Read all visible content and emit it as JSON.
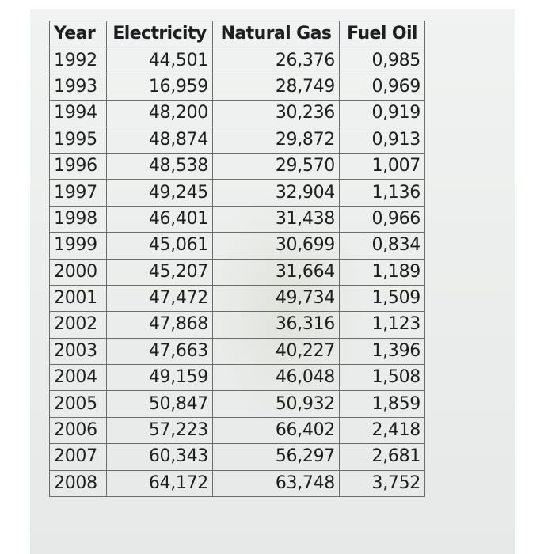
{
  "table": {
    "headers": [
      "Year",
      "Electricity",
      "Natural Gas",
      "Fuel Oil"
    ],
    "rows": [
      [
        "1992",
        "44,501",
        "26,376",
        "0,985"
      ],
      [
        "1993",
        "16,959",
        "28,749",
        "0,969"
      ],
      [
        "1994",
        "48,200",
        "30,236",
        "0,919"
      ],
      [
        "1995",
        "48,874",
        "29,872",
        "0,913"
      ],
      [
        "1996",
        "48,538",
        "29,570",
        "1,007"
      ],
      [
        "1997",
        "49,245",
        "32,904",
        "1,136"
      ],
      [
        "1998",
        "46,401",
        "31,438",
        "0,966"
      ],
      [
        "1999",
        "45,061",
        "30,699",
        "0,834"
      ],
      [
        "2000",
        "45,207",
        "31,664",
        "1,189"
      ],
      [
        "2001",
        "47,472",
        "49,734",
        "1,509"
      ],
      [
        "2002",
        "47,868",
        "36,316",
        "1,123"
      ],
      [
        "2003",
        "47,663",
        "40,227",
        "1,396"
      ],
      [
        "2004",
        "49,159",
        "46,048",
        "1,508"
      ],
      [
        "2005",
        "50,847",
        "50,932",
        "1,859"
      ],
      [
        "2006",
        "57,223",
        "66,402",
        "2,418"
      ],
      [
        "2007",
        "60,343",
        "56,297",
        "2,681"
      ],
      [
        "2008",
        "64,172",
        "63,748",
        "3,752"
      ]
    ]
  }
}
